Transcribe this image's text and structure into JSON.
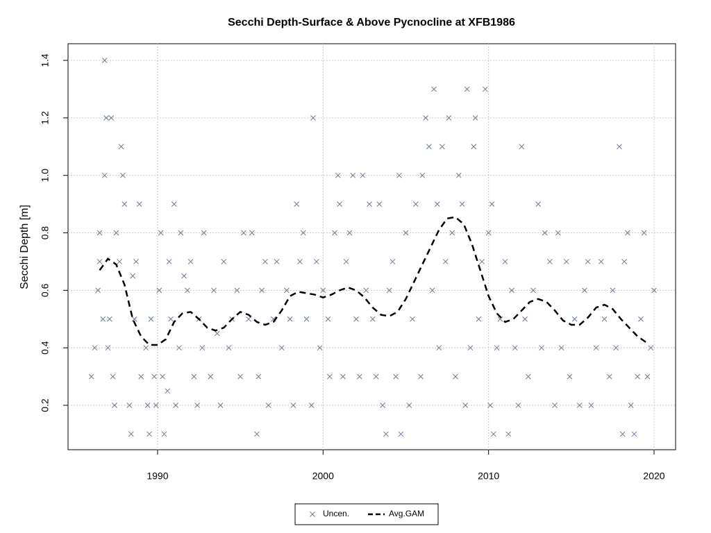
{
  "chart_data": {
    "type": "scatter",
    "title": "Secchi Depth-Surface & Above Pycnocline at XFB1986",
    "y_label": "Secchi Depth [m]",
    "xlim": [
      1984.59,
      2021.3
    ],
    "ylim": [
      0.0455,
      1.458
    ],
    "xticks": [
      1990,
      2000,
      2010,
      2020
    ],
    "yticks": [
      0.2,
      0.4,
      0.6,
      0.8,
      {
        "value": 1,
        "label": "1.0"
      },
      1.2,
      1.4
    ],
    "grid": true,
    "legend_position": "bottom",
    "series": [
      {
        "name": "Uncen.",
        "type": "scatter",
        "color": "#6b7a8f",
        "x": [
          1986.0,
          1986.2,
          1986.4,
          1986.5,
          1986.5,
          1986.7,
          1986.8,
          1986.8,
          1986.9,
          1987.0,
          1987.1,
          1987.2,
          1987.3,
          1987.4,
          1987.5,
          1987.7,
          1987.8,
          1987.9,
          1988.0,
          1988.3,
          1988.4,
          1988.5,
          1988.6,
          1988.7,
          1988.9,
          1989.0,
          1989.3,
          1989.4,
          1989.5,
          1989.6,
          1989.8,
          1989.9,
          1990.1,
          1990.2,
          1990.3,
          1990.4,
          1990.6,
          1990.7,
          1990.8,
          1991.0,
          1991.1,
          1991.3,
          1991.4,
          1991.6,
          1991.8,
          1992.0,
          1992.2,
          1992.4,
          1992.5,
          1992.7,
          1992.8,
          1993.2,
          1993.4,
          1993.6,
          1993.8,
          1994.0,
          1994.3,
          1994.5,
          1994.8,
          1995.0,
          1995.2,
          1995.5,
          1995.7,
          1996.0,
          1996.1,
          1996.3,
          1996.5,
          1996.7,
          1997.0,
          1997.2,
          1997.5,
          1997.8,
          1998.0,
          1998.2,
          1998.4,
          1998.6,
          1998.8,
          1999.0,
          1999.3,
          1999.4,
          1999.6,
          1999.8,
          2000.0,
          2000.3,
          2000.4,
          2000.7,
          2000.9,
          2001.0,
          2001.2,
          2001.4,
          2001.6,
          2001.8,
          2002.0,
          2002.2,
          2002.4,
          2002.6,
          2002.8,
          2003.0,
          2003.2,
          2003.4,
          2003.6,
          2003.8,
          2004.0,
          2004.2,
          2004.4,
          2004.6,
          2004.7,
          2005.0,
          2005.2,
          2005.4,
          2005.6,
          2005.9,
          2006.0,
          2006.2,
          2006.4,
          2006.6,
          2006.7,
          2006.9,
          2007.0,
          2007.2,
          2007.4,
          2007.6,
          2007.8,
          2008.0,
          2008.2,
          2008.4,
          2008.6,
          2008.7,
          2008.9,
          2009.1,
          2009.2,
          2009.4,
          2009.6,
          2009.8,
          2010.0,
          2010.1,
          2010.2,
          2010.3,
          2010.5,
          2010.7,
          2011.0,
          2011.2,
          2011.4,
          2011.6,
          2011.8,
          2012.0,
          2012.2,
          2012.4,
          2012.7,
          2013.0,
          2013.2,
          2013.4,
          2013.7,
          2014.0,
          2014.2,
          2014.4,
          2014.7,
          2014.9,
          2015.2,
          2015.5,
          2015.8,
          2016.0,
          2016.2,
          2016.5,
          2016.8,
          2017.0,
          2017.3,
          2017.5,
          2017.7,
          2017.9,
          2018.1,
          2018.2,
          2018.4,
          2018.6,
          2018.8,
          2019.0,
          2019.2,
          2019.4,
          2019.6,
          2019.8,
          2020.0
        ],
        "values": [
          0.3,
          0.4,
          0.6,
          0.7,
          0.8,
          0.5,
          1.4,
          1.0,
          1.2,
          0.4,
          0.5,
          1.2,
          0.3,
          0.2,
          0.8,
          0.7,
          1.1,
          1.0,
          0.9,
          0.2,
          0.1,
          0.65,
          0.5,
          0.7,
          0.9,
          0.3,
          0.4,
          0.2,
          0.1,
          0.5,
          0.3,
          0.2,
          0.6,
          0.8,
          0.3,
          0.1,
          0.25,
          0.7,
          0.5,
          0.9,
          0.2,
          0.4,
          0.8,
          0.65,
          0.6,
          0.7,
          0.3,
          0.2,
          0.5,
          0.4,
          0.8,
          0.3,
          0.6,
          0.45,
          0.2,
          0.7,
          0.4,
          0.5,
          0.6,
          0.3,
          0.8,
          0.5,
          0.8,
          0.1,
          0.3,
          0.6,
          0.7,
          0.2,
          0.5,
          0.7,
          0.4,
          0.6,
          0.5,
          0.2,
          0.9,
          0.7,
          0.8,
          0.5,
          0.2,
          1.2,
          0.7,
          0.4,
          0.6,
          0.5,
          0.3,
          0.8,
          1.0,
          0.9,
          0.3,
          0.7,
          0.8,
          1.0,
          0.5,
          0.3,
          1.0,
          0.6,
          0.9,
          0.5,
          0.3,
          0.9,
          0.2,
          0.1,
          0.6,
          0.7,
          0.3,
          1.0,
          0.1,
          0.8,
          0.2,
          0.5,
          0.9,
          0.3,
          1.0,
          1.2,
          1.1,
          0.6,
          1.3,
          0.9,
          0.4,
          1.1,
          0.7,
          1.2,
          0.8,
          0.3,
          1.0,
          0.9,
          0.2,
          1.3,
          0.4,
          1.1,
          1.2,
          0.5,
          0.7,
          1.3,
          0.8,
          0.2,
          0.9,
          0.1,
          0.4,
          0.5,
          0.7,
          0.1,
          0.6,
          0.4,
          0.2,
          1.1,
          0.5,
          0.3,
          0.6,
          0.9,
          0.4,
          0.8,
          0.7,
          0.2,
          0.8,
          0.4,
          0.7,
          0.3,
          0.5,
          0.2,
          0.6,
          0.7,
          0.2,
          0.4,
          0.7,
          0.5,
          0.3,
          0.6,
          0.4,
          1.1,
          0.1,
          0.7,
          0.8,
          0.2,
          0.1,
          0.3,
          0.5,
          0.8,
          0.3,
          0.4,
          0.6
        ]
      },
      {
        "name": "Avg.GAM",
        "type": "line",
        "color": "#000000",
        "x": [
          1986.5,
          1987,
          1987.5,
          1988,
          1988.5,
          1989,
          1989.5,
          1990,
          1990.5,
          1991,
          1991.5,
          1992,
          1992.5,
          1993,
          1993.5,
          1994,
          1994.5,
          1995,
          1995.5,
          1996,
          1996.5,
          1997,
          1997.5,
          1998,
          1998.5,
          1999,
          1999.5,
          2000,
          2000.5,
          2001,
          2001.5,
          2002,
          2002.5,
          2003,
          2003.5,
          2004,
          2004.5,
          2005,
          2005.5,
          2006,
          2006.5,
          2007,
          2007.5,
          2008,
          2008.5,
          2009,
          2009.5,
          2010,
          2010.5,
          2011,
          2011.5,
          2012,
          2012.5,
          2013,
          2013.5,
          2014,
          2014.5,
          2015,
          2015.5,
          2016,
          2016.5,
          2017,
          2017.5,
          2018,
          2018.5,
          2019,
          2019.5
        ],
        "values": [
          0.67,
          0.71,
          0.69,
          0.62,
          0.5,
          0.44,
          0.41,
          0.41,
          0.43,
          0.49,
          0.52,
          0.525,
          0.5,
          0.47,
          0.46,
          0.47,
          0.5,
          0.525,
          0.515,
          0.49,
          0.48,
          0.49,
          0.53,
          0.58,
          0.595,
          0.59,
          0.585,
          0.575,
          0.585,
          0.6,
          0.61,
          0.6,
          0.575,
          0.54,
          0.515,
          0.51,
          0.525,
          0.57,
          0.63,
          0.69,
          0.75,
          0.81,
          0.85,
          0.855,
          0.83,
          0.76,
          0.67,
          0.58,
          0.52,
          0.49,
          0.5,
          0.53,
          0.56,
          0.57,
          0.56,
          0.53,
          0.495,
          0.48,
          0.48,
          0.505,
          0.54,
          0.55,
          0.535,
          0.5,
          0.47,
          0.44,
          0.42
        ]
      }
    ]
  }
}
